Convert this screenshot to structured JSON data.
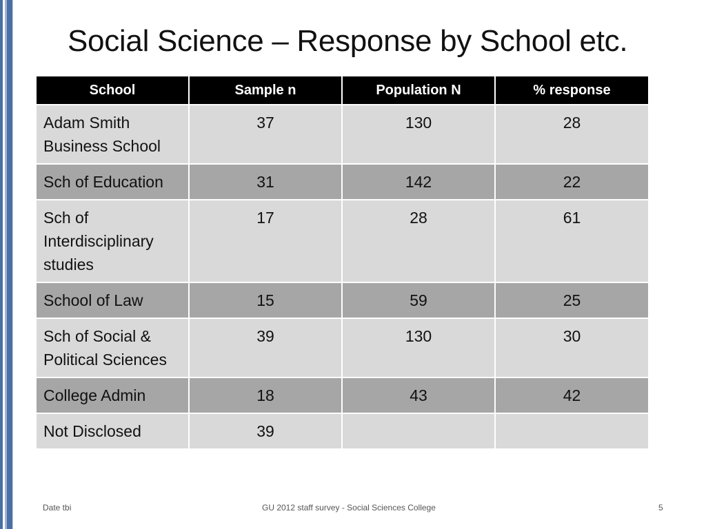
{
  "slide": {
    "title": "Social Science – Response by School etc."
  },
  "table": {
    "headers": [
      "School",
      "Sample n",
      "Population N",
      "% response"
    ],
    "rows": [
      {
        "school": "Adam Smith Business School",
        "sample_n": "37",
        "population_n": "130",
        "response_pct": "28"
      },
      {
        "school": "Sch of Education",
        "sample_n": "31",
        "population_n": "142",
        "response_pct": "22"
      },
      {
        "school": "Sch of Interdisciplinary studies",
        "sample_n": "17",
        "population_n": "28",
        "response_pct": "61"
      },
      {
        "school": "School of Law",
        "sample_n": "15",
        "population_n": "59",
        "response_pct": "25"
      },
      {
        "school": "Sch of Social & Political Sciences",
        "sample_n": "39",
        "population_n": "130",
        "response_pct": "30"
      },
      {
        "school": "College Admin",
        "sample_n": "18",
        "population_n": "43",
        "response_pct": "42"
      },
      {
        "school": "Not Disclosed",
        "sample_n": "39",
        "population_n": "",
        "response_pct": ""
      }
    ]
  },
  "footer": {
    "date": "Date tbi",
    "center": "GU 2012 staff survey -  Social Sciences College",
    "page_number": "5"
  },
  "colors": {
    "header_bg": "#000000",
    "row_light": "#d9d9d9",
    "row_dark": "#a6a6a6",
    "accent_bar": "#4a6fa5"
  }
}
